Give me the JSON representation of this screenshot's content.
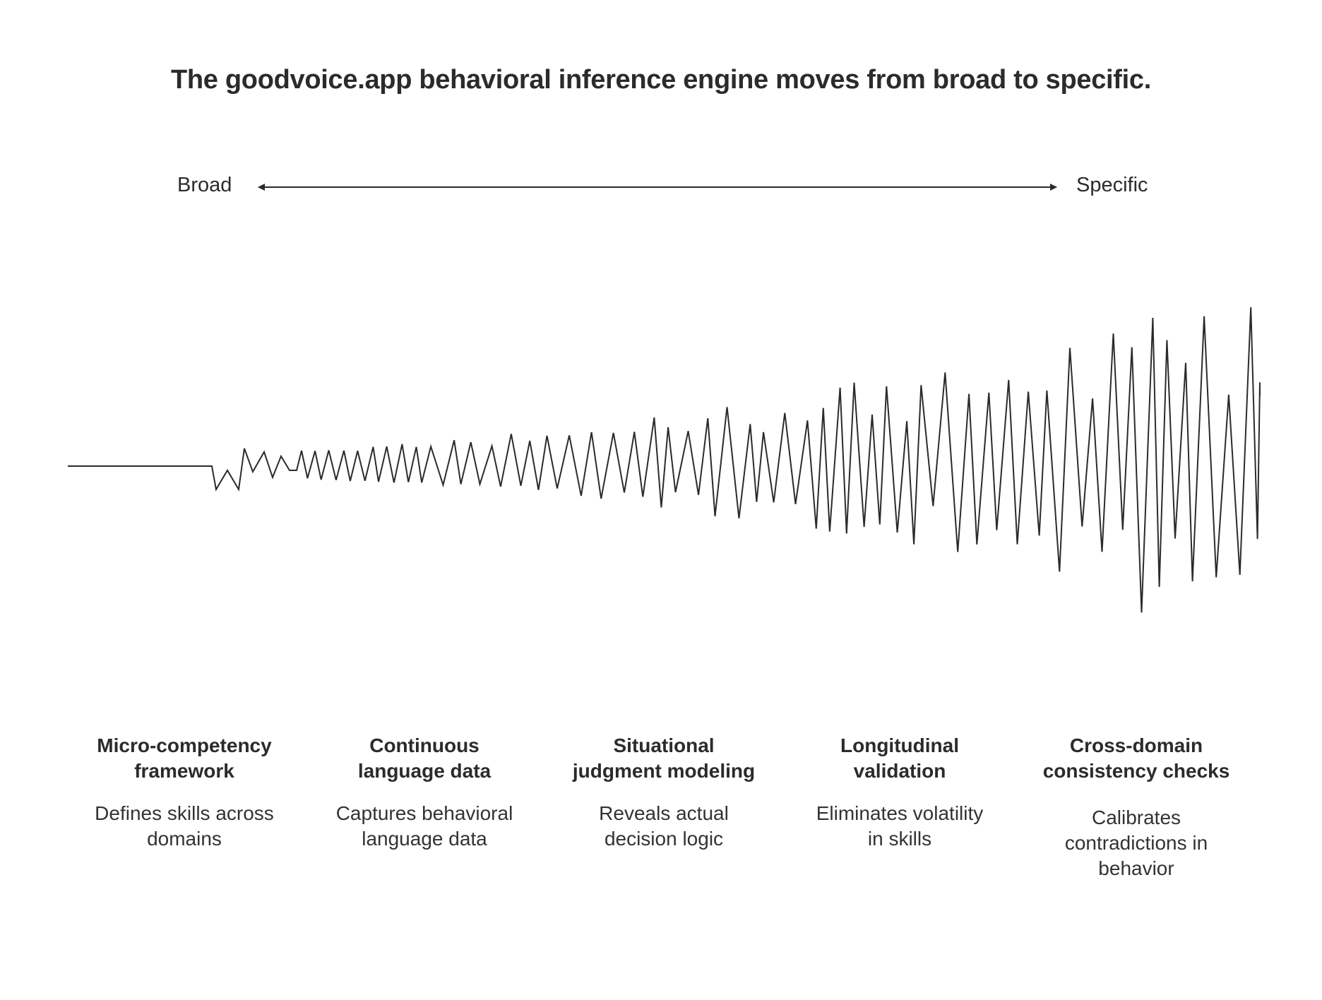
{
  "title": "The goodvoice.app behavioral inference engine moves from broad to specific.",
  "axis": {
    "left_label": "Broad",
    "right_label": "Specific"
  },
  "colors": {
    "ink": "#2b2b2b",
    "background": "#ffffff"
  },
  "stages": [
    {
      "title_line1": "Micro-competency",
      "title_line2": "framework",
      "desc_line1": "Defines skills across",
      "desc_line2": "domains",
      "desc_line3": ""
    },
    {
      "title_line1": "Continuous",
      "title_line2": "language data",
      "desc_line1": "Captures behavioral",
      "desc_line2": "language data",
      "desc_line3": ""
    },
    {
      "title_line1": "Situational",
      "title_line2": "judgment modeling",
      "desc_line1": "Reveals actual",
      "desc_line2": "decision logic",
      "desc_line3": ""
    },
    {
      "title_line1": "Longitudinal",
      "title_line2": "validation",
      "desc_line1": "Eliminates volatility",
      "desc_line2": "in skills",
      "desc_line3": ""
    },
    {
      "title_line1": "Cross-domain",
      "title_line2": "consistency checks",
      "desc_line1": "Calibrates",
      "desc_line2": "contradictions in",
      "desc_line3": "behavior"
    }
  ]
}
